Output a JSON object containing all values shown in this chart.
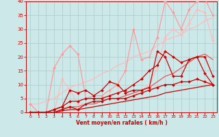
{
  "xlabel": "Vent moyen/en rafales ( km/h )",
  "xlim": [
    -0.5,
    23.5
  ],
  "ylim": [
    0,
    40
  ],
  "xticks": [
    0,
    1,
    2,
    3,
    4,
    5,
    6,
    7,
    8,
    9,
    10,
    11,
    12,
    13,
    14,
    15,
    16,
    17,
    18,
    19,
    20,
    21,
    22,
    23
  ],
  "yticks": [
    0,
    5,
    10,
    15,
    20,
    25,
    30,
    35,
    40
  ],
  "bg_color": "#cce8e8",
  "grid_color": "#aacccc",
  "lines": [
    {
      "x": [
        0,
        1,
        2,
        3,
        4,
        5,
        6,
        7,
        8,
        9,
        10,
        11,
        12,
        13,
        14,
        15,
        16,
        17,
        18,
        19,
        20,
        21,
        22,
        23
      ],
      "y": [
        3,
        0,
        0,
        16,
        21,
        24,
        21,
        5,
        6,
        6,
        8,
        10,
        15,
        30,
        19,
        20,
        27,
        40,
        36,
        30,
        37,
        40,
        41,
        35
      ],
      "color": "#ff9999",
      "lw": 0.9,
      "marker": "D",
      "ms": 2.0
    },
    {
      "x": [
        0,
        1,
        2,
        3,
        4,
        5,
        6,
        7,
        8,
        9,
        10,
        11,
        12,
        13,
        14,
        15,
        16,
        17,
        18,
        19,
        20,
        21,
        22,
        23
      ],
      "y": [
        0,
        0,
        0,
        0,
        12,
        8,
        3,
        3,
        4,
        4,
        5,
        5,
        5,
        6,
        8,
        10,
        16,
        27,
        30,
        28,
        32,
        37,
        36,
        26
      ],
      "color": "#ffbbbb",
      "lw": 0.9,
      "marker": "D",
      "ms": 2.0
    },
    {
      "x": [
        0,
        1,
        2,
        3,
        4,
        5,
        6,
        7,
        8,
        9,
        10,
        11,
        12,
        13,
        14,
        15,
        16,
        17,
        18,
        19,
        20,
        21,
        22,
        23
      ],
      "y": [
        3,
        3,
        4,
        5,
        7,
        9,
        10,
        11,
        12,
        14,
        15,
        17,
        18,
        20,
        21,
        22,
        24,
        26,
        27,
        28,
        30,
        31,
        33,
        34
      ],
      "color": "#ffbbbb",
      "lw": 0.9,
      "marker": null,
      "ms": 0
    },
    {
      "x": [
        0,
        1,
        2,
        3,
        4,
        5,
        6,
        7,
        8,
        9,
        10,
        11,
        12,
        13,
        14,
        15,
        16,
        17,
        18,
        19,
        20,
        21,
        22,
        23
      ],
      "y": [
        0,
        0,
        0,
        0,
        1,
        2,
        2,
        3,
        3,
        4,
        5,
        5,
        6,
        7,
        8,
        9,
        11,
        13,
        14,
        16,
        18,
        20,
        21,
        19
      ],
      "color": "#ee5555",
      "lw": 0.9,
      "marker": null,
      "ms": 0
    },
    {
      "x": [
        0,
        1,
        2,
        3,
        4,
        5,
        6,
        7,
        8,
        9,
        10,
        11,
        12,
        13,
        14,
        15,
        16,
        17,
        18,
        19,
        20,
        21,
        22,
        23
      ],
      "y": [
        0,
        0,
        0,
        1,
        2,
        4,
        4,
        5,
        5,
        5,
        6,
        7,
        8,
        10,
        12,
        15,
        17,
        22,
        20,
        18,
        19,
        20,
        20,
        13
      ],
      "color": "#cc0000",
      "lw": 0.9,
      "marker": "D",
      "ms": 2.0
    },
    {
      "x": [
        0,
        1,
        2,
        3,
        4,
        5,
        6,
        7,
        8,
        9,
        10,
        11,
        12,
        13,
        14,
        15,
        16,
        17,
        18,
        19,
        20,
        21,
        22,
        23
      ],
      "y": [
        0,
        0,
        0,
        1,
        2,
        8,
        7,
        8,
        6,
        8,
        11,
        10,
        7,
        8,
        8,
        9,
        22,
        20,
        13,
        13,
        19,
        20,
        14,
        10
      ],
      "color": "#cc0000",
      "lw": 0.9,
      "marker": "D",
      "ms": 2.0
    },
    {
      "x": [
        0,
        1,
        2,
        3,
        4,
        5,
        6,
        7,
        8,
        9,
        10,
        11,
        12,
        13,
        14,
        15,
        16,
        17,
        18,
        19,
        20,
        21,
        22,
        23
      ],
      "y": [
        0,
        0,
        0,
        0,
        1,
        2,
        1,
        3,
        4,
        4,
        5,
        5,
        5,
        6,
        7,
        8,
        9,
        10,
        10,
        11,
        11,
        12,
        11,
        10
      ],
      "color": "#cc0000",
      "lw": 0.9,
      "marker": "D",
      "ms": 2.0
    },
    {
      "x": [
        0,
        1,
        2,
        3,
        4,
        5,
        6,
        7,
        8,
        9,
        10,
        11,
        12,
        13,
        14,
        15,
        16,
        17,
        18,
        19,
        20,
        21,
        22,
        23
      ],
      "y": [
        0,
        0,
        0,
        0,
        0.5,
        1,
        1,
        1.5,
        2,
        2.5,
        3,
        3.5,
        4,
        4.5,
        5,
        5.5,
        6,
        7,
        7.5,
        8,
        8.5,
        9,
        9.5,
        10
      ],
      "color": "#cc0000",
      "lw": 0.9,
      "marker": null,
      "ms": 0
    }
  ]
}
